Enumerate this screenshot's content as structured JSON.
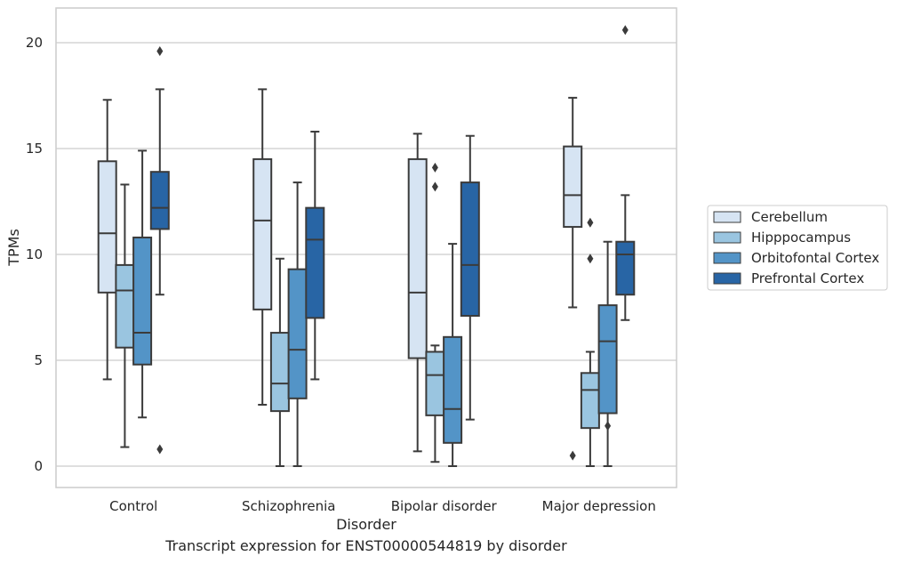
{
  "chart_data": {
    "type": "box",
    "xlabel": "Disorder",
    "ylabel": "TPMs",
    "caption": "Transcript expression for ENST00000544819 by disorder",
    "ylim": [
      -1,
      21.6
    ],
    "yticks": [
      0,
      5,
      10,
      15,
      20
    ],
    "grid": "horizontal",
    "legend_position": "right",
    "categories": [
      "Control",
      "Schizophrenia",
      "Bipolar disorder",
      "Major depression"
    ],
    "series": [
      {
        "name": "Cerebellum",
        "color": "#d6e4f3",
        "boxes": [
          {
            "whislo": 4.1,
            "q1": 8.2,
            "med": 11.0,
            "q3": 14.4,
            "whishi": 17.3,
            "fliers": []
          },
          {
            "whislo": 2.9,
            "q1": 7.4,
            "med": 11.6,
            "q3": 14.5,
            "whishi": 17.8,
            "fliers": []
          },
          {
            "whislo": 0.7,
            "q1": 5.1,
            "med": 8.2,
            "q3": 14.5,
            "whishi": 15.7,
            "fliers": []
          },
          {
            "whislo": 7.5,
            "q1": 11.3,
            "med": 12.8,
            "q3": 15.1,
            "whishi": 17.4,
            "fliers": [
              0.5
            ]
          }
        ]
      },
      {
        "name": "Hipppocampus",
        "color": "#9ac5e0",
        "boxes": [
          {
            "whislo": 0.9,
            "q1": 5.6,
            "med": 8.3,
            "q3": 9.5,
            "whishi": 13.3,
            "fliers": []
          },
          {
            "whislo": 0.0,
            "q1": 2.6,
            "med": 3.9,
            "q3": 6.3,
            "whishi": 9.8,
            "fliers": []
          },
          {
            "whislo": 0.2,
            "q1": 2.4,
            "med": 4.3,
            "q3": 5.4,
            "whishi": 5.7,
            "fliers": [
              14.1,
              13.2
            ]
          },
          {
            "whislo": 0.0,
            "q1": 1.8,
            "med": 3.6,
            "q3": 4.4,
            "whishi": 5.4,
            "fliers": [
              11.5,
              9.8
            ]
          }
        ]
      },
      {
        "name": "Orbitofontal Cortex",
        "color": "#5394c7",
        "boxes": [
          {
            "whislo": 2.3,
            "q1": 4.8,
            "med": 6.3,
            "q3": 10.8,
            "whishi": 14.9,
            "fliers": []
          },
          {
            "whislo": 0.0,
            "q1": 3.2,
            "med": 5.5,
            "q3": 9.3,
            "whishi": 13.4,
            "fliers": []
          },
          {
            "whislo": 0.0,
            "q1": 1.1,
            "med": 2.7,
            "q3": 6.1,
            "whishi": 10.5,
            "fliers": []
          },
          {
            "whislo": 0.0,
            "q1": 2.5,
            "med": 5.9,
            "q3": 7.6,
            "whishi": 10.6,
            "fliers": [
              1.9
            ]
          }
        ]
      },
      {
        "name": "Prefrontal Cortex",
        "color": "#2865a5",
        "boxes": [
          {
            "whislo": 8.1,
            "q1": 11.2,
            "med": 12.2,
            "q3": 13.9,
            "whishi": 17.8,
            "fliers": [
              19.6,
              0.8
            ]
          },
          {
            "whislo": 4.1,
            "q1": 7.0,
            "med": 10.7,
            "q3": 12.2,
            "whishi": 15.8,
            "fliers": []
          },
          {
            "whislo": 2.2,
            "q1": 7.1,
            "med": 9.5,
            "q3": 13.4,
            "whishi": 15.6,
            "fliers": []
          },
          {
            "whislo": 6.9,
            "q1": 8.1,
            "med": 10.0,
            "q3": 10.6,
            "whishi": 12.8,
            "fliers": [
              20.6
            ]
          }
        ]
      }
    ]
  }
}
